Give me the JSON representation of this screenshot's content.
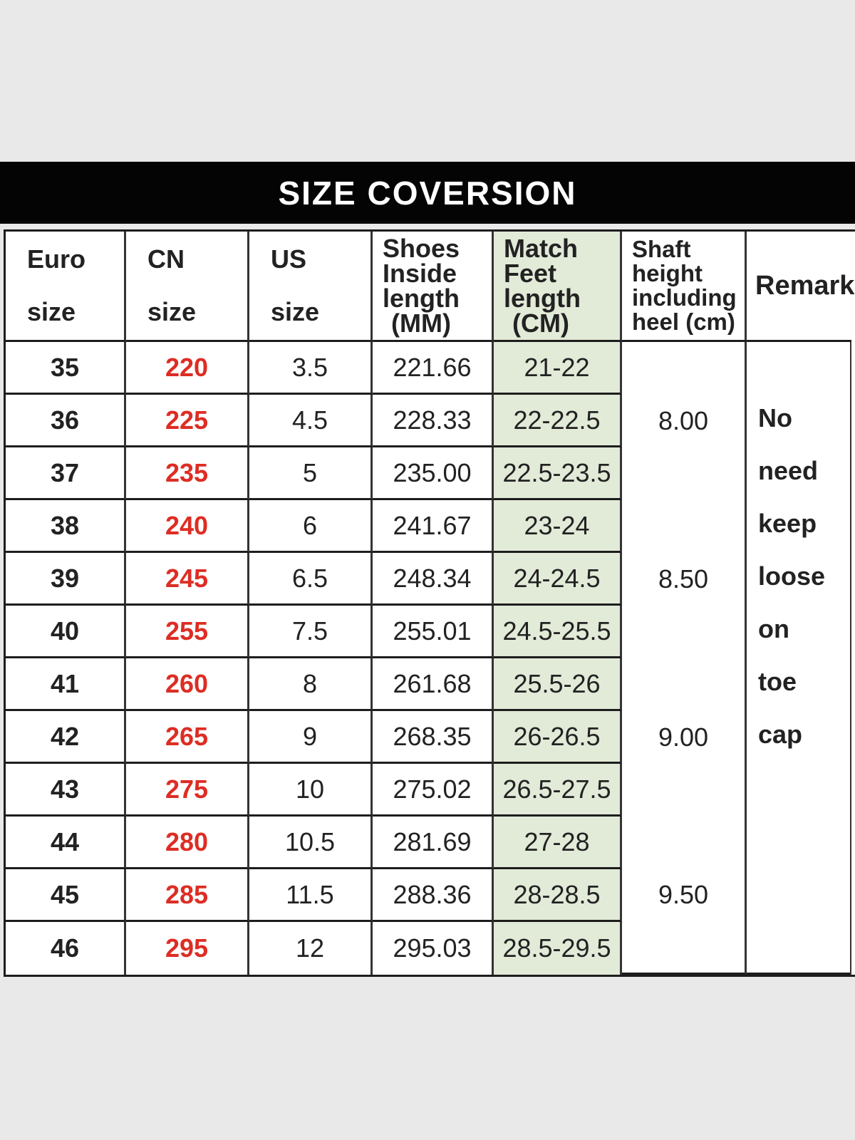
{
  "title": "SIZE COVERSION",
  "table": {
    "columns": [
      {
        "id": "euro",
        "lines": [
          "Euro",
          "size"
        ]
      },
      {
        "id": "cn",
        "lines": [
          "CN",
          "size"
        ]
      },
      {
        "id": "us",
        "lines": [
          "US",
          "size"
        ]
      },
      {
        "id": "inside",
        "lines": [
          "Shoes",
          "Inside",
          "length",
          "(MM)"
        ]
      },
      {
        "id": "match",
        "lines": [
          "Match",
          "Feet",
          "length",
          "(CM)"
        ]
      },
      {
        "id": "shaft",
        "lines": [
          "Shaft",
          "height",
          "including",
          "heel (cm)"
        ]
      },
      {
        "id": "remark",
        "lines": [
          "Remark"
        ]
      }
    ],
    "rows": [
      {
        "euro": "35",
        "cn": "220",
        "us": "3.5",
        "inside_mm": "221.66",
        "feet_cm": "21-22"
      },
      {
        "euro": "36",
        "cn": "225",
        "us": "4.5",
        "inside_mm": "228.33",
        "feet_cm": "22-22.5"
      },
      {
        "euro": "37",
        "cn": "235",
        "us": "5",
        "inside_mm": "235.00",
        "feet_cm": "22.5-23.5"
      },
      {
        "euro": "38",
        "cn": "240",
        "us": "6",
        "inside_mm": "241.67",
        "feet_cm": "23-24"
      },
      {
        "euro": "39",
        "cn": "245",
        "us": "6.5",
        "inside_mm": "248.34",
        "feet_cm": "24-24.5"
      },
      {
        "euro": "40",
        "cn": "255",
        "us": "7.5",
        "inside_mm": "255.01",
        "feet_cm": "24.5-25.5"
      },
      {
        "euro": "41",
        "cn": "260",
        "us": "8",
        "inside_mm": "261.68",
        "feet_cm": "25.5-26"
      },
      {
        "euro": "42",
        "cn": "265",
        "us": "9",
        "inside_mm": "268.35",
        "feet_cm": "26-26.5"
      },
      {
        "euro": "43",
        "cn": "275",
        "us": "10",
        "inside_mm": "275.02",
        "feet_cm": "26.5-27.5"
      },
      {
        "euro": "44",
        "cn": "280",
        "us": "10.5",
        "inside_mm": "281.69",
        "feet_cm": "27-28"
      },
      {
        "euro": "45",
        "cn": "285",
        "us": "11.5",
        "inside_mm": "288.36",
        "feet_cm": "28-28.5"
      },
      {
        "euro": "46",
        "cn": "295",
        "us": "12",
        "inside_mm": "295.03",
        "feet_cm": "28.5-29.5"
      }
    ],
    "shaft_groups": [
      {
        "value": "8.00"
      },
      {
        "value": "8.50"
      },
      {
        "value": "9.00"
      },
      {
        "value": "9.50"
      }
    ],
    "remark_words": [
      "No",
      "need",
      "keep",
      "loose",
      "on",
      "toe",
      "cap"
    ]
  },
  "colors": {
    "background": "#e9e9e9",
    "banner": "#040404",
    "banner_text": "#ffffff",
    "highlight_green": "#e2ead8",
    "cn_red": "#dd2d24",
    "border": "#1d1d1d"
  }
}
